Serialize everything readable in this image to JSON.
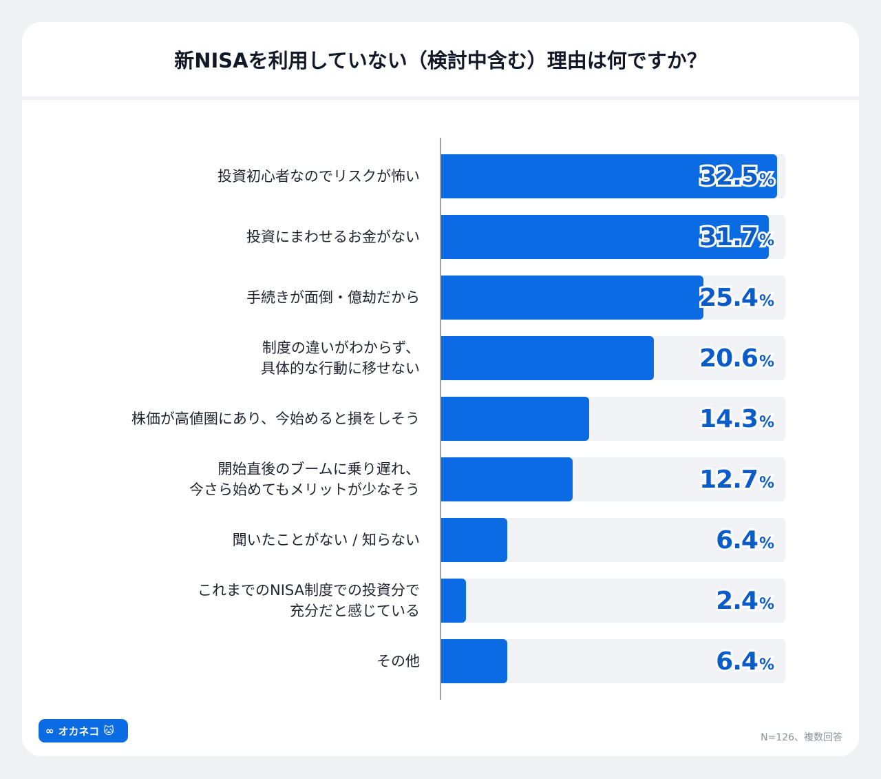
{
  "chart_data": {
    "type": "bar",
    "orientation": "horizontal",
    "title": "新NISAを利用していない（検討中含む）理由は何ですか？",
    "categories": [
      "投資初心者なのでリスクが怖い",
      "投資にまわせるお金がない",
      "手続きが面倒・億劫だから",
      "制度の違いがわからず、\n具体的な行動に移せない",
      "株価が高値圏にあり、今始めると損をしそう",
      "開始直後のブームに乗り遅れ、\n今さら始めてもメリットが少なそう",
      "聞いたことがない / 知らない",
      "これまでのNISA制度での投資分で\n充分だと感じている",
      "その他"
    ],
    "values": [
      32.5,
      31.7,
      25.4,
      20.6,
      14.3,
      12.7,
      6.4,
      2.4,
      6.4
    ],
    "value_labels": [
      "32.5",
      "31.7",
      "25.4",
      "20.6",
      "14.3",
      "12.7",
      "6.4",
      "2.4",
      "6.4"
    ],
    "unit": "%",
    "colors": {
      "bar": "#0b6be3",
      "track": "#f1f2f5",
      "value_text": "#0b5bc8"
    }
  },
  "footer": {
    "note": "N=126、複数回答",
    "logo_text": "オカネコ"
  }
}
